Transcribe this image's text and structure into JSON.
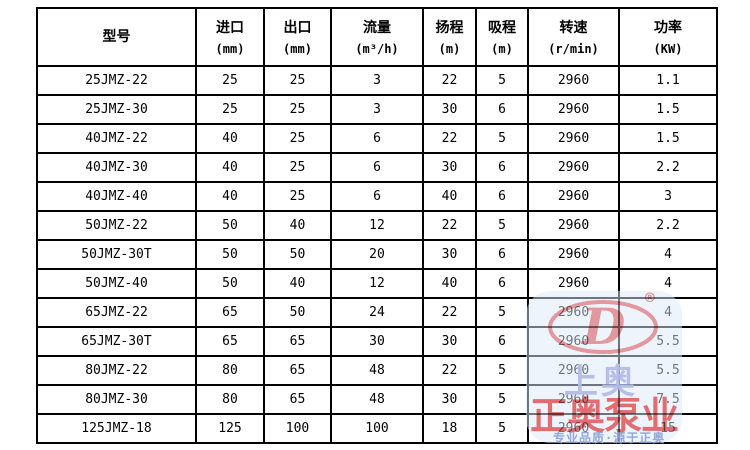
{
  "chart_data": {
    "type": "table",
    "columns": [
      {
        "label": "型号",
        "unit": ""
      },
      {
        "label": "进口",
        "unit": "(mm)"
      },
      {
        "label": "出口",
        "unit": "(mm)"
      },
      {
        "label": "流量",
        "unit": "(m³/h)"
      },
      {
        "label": "扬程",
        "unit": "(m)"
      },
      {
        "label": "吸程",
        "unit": "(m)"
      },
      {
        "label": "转速",
        "unit": "(r/min)"
      },
      {
        "label": "功率",
        "unit": "(KW)"
      }
    ],
    "rows": [
      [
        "25JMZ-22",
        "25",
        "25",
        "3",
        "22",
        "5",
        "2960",
        "1.1"
      ],
      [
        "25JMZ-30",
        "25",
        "25",
        "3",
        "30",
        "6",
        "2960",
        "1.5"
      ],
      [
        "40JMZ-22",
        "40",
        "25",
        "6",
        "22",
        "5",
        "2960",
        "1.5"
      ],
      [
        "40JMZ-30",
        "40",
        "25",
        "6",
        "30",
        "6",
        "2960",
        "2.2"
      ],
      [
        "40JMZ-40",
        "40",
        "25",
        "6",
        "40",
        "6",
        "2960",
        "3"
      ],
      [
        "50JMZ-22",
        "50",
        "40",
        "12",
        "22",
        "5",
        "2960",
        "2.2"
      ],
      [
        "50JMZ-30T",
        "50",
        "50",
        "20",
        "30",
        "6",
        "2960",
        "4"
      ],
      [
        "50JMZ-40",
        "50",
        "40",
        "12",
        "40",
        "6",
        "2960",
        "4"
      ],
      [
        "65JMZ-22",
        "65",
        "50",
        "24",
        "22",
        "5",
        "2960",
        "4"
      ],
      [
        "65JMZ-30T",
        "65",
        "65",
        "30",
        "30",
        "6",
        "2960",
        "5.5"
      ],
      [
        "80JMZ-22",
        "80",
        "65",
        "48",
        "22",
        "5",
        "2960",
        "5.5"
      ],
      [
        "80JMZ-30",
        "80",
        "65",
        "48",
        "30",
        "5",
        "2960",
        "7.5"
      ],
      [
        "125JMZ-18",
        "125",
        "100",
        "100",
        "18",
        "5",
        "2960",
        "15"
      ]
    ]
  },
  "watermark": {
    "registered_mark": "®",
    "logo_letter": "D",
    "brand_small": "上奥",
    "brand_large": "正奥泵业",
    "tagline": "专业品质·源于正奥",
    "colors": {
      "logo_red": "#f17e7e",
      "brand_red": "#f25252",
      "brand_periwinkle": "#b5bde8",
      "tagline_blue": "#8fa3d9",
      "panel_blue": "#dbeafa"
    }
  }
}
